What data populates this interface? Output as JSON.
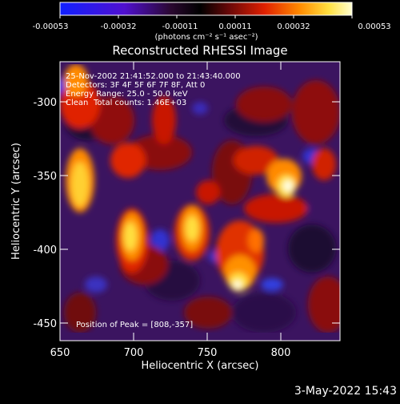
{
  "colorbar": {
    "ticks": [
      "-0.00053",
      "-0.00032",
      "-0.00011",
      "0.00011",
      "0.00032",
      "0.00053"
    ],
    "units": "(photons cm⁻² s⁻¹ asec⁻²)"
  },
  "plot": {
    "title": "Reconstructed RHESSI Image",
    "xlabel": "Heliocentric X (arcsec)",
    "ylabel": "Heliocentric Y (arcsec)",
    "xticks": [
      "650",
      "700",
      "750",
      "800"
    ],
    "yticks": [
      "-300",
      "-350",
      "-400",
      "-450"
    ],
    "xlim": [
      650,
      840
    ],
    "ylim": [
      -465,
      -275
    ]
  },
  "annotations": {
    "time": "25-Nov-2002 21:41:52.000 to 21:43:40.000",
    "detectors": "Detectors: 3F 4F 5F 6F 7F 8F, Att 0",
    "energy": "Energy Range: 25.0 - 50.0 keV",
    "clean_label": "Clean",
    "total_counts": "Total counts: 1.46E+03",
    "peak": "Position of Peak = [808,-357]"
  },
  "footer": {
    "timestamp": "3-May-2022 15:43"
  },
  "colors": {
    "background": "#000000",
    "text": "#ffffff",
    "colormap": [
      "#0000ff",
      "#5000c8",
      "#3a1058",
      "#000000",
      "#901010",
      "#ff3000",
      "#ffa000",
      "#ffff60",
      "#ffffff"
    ]
  }
}
